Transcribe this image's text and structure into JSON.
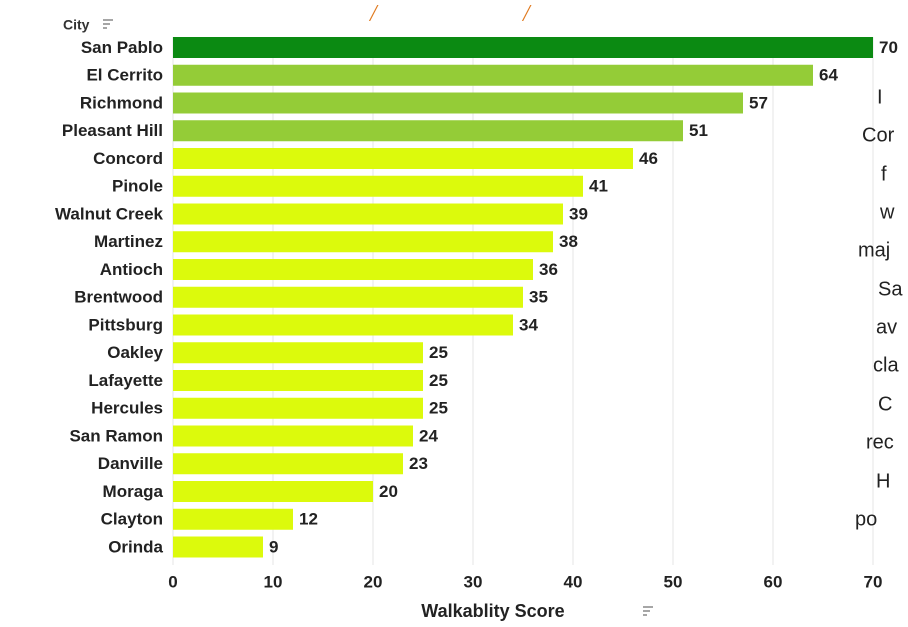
{
  "title_fragment": "/",
  "row_header": "City",
  "sort_icon": "sort-icon",
  "side_text_fragments": [
    "I",
    "Cor",
    "f",
    "w",
    "maj",
    "Sa",
    "av",
    "cla",
    "C",
    "rec",
    "H",
    "po"
  ],
  "colors": {
    "dark_green": "#0b8a12",
    "mid_green": "#94cc37",
    "yellow_green": "#dcfa0c",
    "grid": "#e6e6e6"
  },
  "chart_data": {
    "type": "bar",
    "orientation": "horizontal",
    "categories": [
      "San Pablo",
      "El Cerrito",
      "Richmond",
      "Pleasant Hill",
      "Concord",
      "Pinole",
      "Walnut Creek",
      "Martinez",
      "Antioch",
      "Brentwood",
      "Pittsburg",
      "Oakley",
      "Lafayette",
      "Hercules",
      "San Ramon",
      "Danville",
      "Moraga",
      "Clayton",
      "Orinda"
    ],
    "values": [
      70,
      64,
      57,
      51,
      46,
      41,
      39,
      38,
      36,
      35,
      34,
      25,
      25,
      25,
      24,
      23,
      20,
      12,
      9
    ],
    "value_labels": [
      "70",
      "64",
      "57",
      "51",
      "46",
      "41",
      "39",
      "38",
      "36",
      "35",
      "34",
      "25",
      "25",
      "25",
      "24",
      "23",
      "20",
      "12",
      "9"
    ],
    "xlabel": "Walkablity Score",
    "ylabel": "City",
    "xlim": [
      0,
      70
    ],
    "xticks": [
      0,
      10,
      20,
      30,
      40,
      50,
      60,
      70
    ],
    "xtick_labels": [
      "0",
      "10",
      "20",
      "30",
      "40",
      "50",
      "60",
      "70"
    ],
    "grid": true
  }
}
